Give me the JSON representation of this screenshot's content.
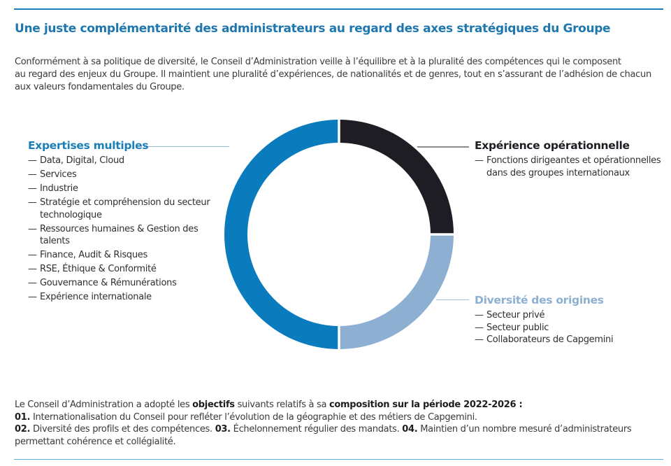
{
  "title": "Une juste complémentarité des administrateurs au regard des axes stratégiques du Groupe",
  "intro_lines": [
    "Conformément à sa politique de diversité, le Conseil d’Administration veille à l’équilibre et à la pluralité des compétences qui le composent",
    "au regard des enjeux du Groupe. Il maintient une pluralité d’expériences, de nationalités et de genres, tout en s’assurant de l’adhésion de chacun",
    "aux valeurs fondamentales du Groupe."
  ],
  "colors": {
    "accent": "#1f77b0",
    "expertises": "#0a7bbd",
    "experience": "#1e1d24",
    "diversite": "#8db0d2"
  },
  "chart_data": {
    "type": "pie",
    "style": "donut",
    "title": "",
    "segments": [
      {
        "name": "Expertises multiples",
        "value": 50,
        "color": "#0a7bbd"
      },
      {
        "name": "Expérience opérationnelle",
        "value": 25,
        "color": "#1e1d24"
      },
      {
        "name": "Diversité des origines",
        "value": 25,
        "color": "#8db0d2"
      }
    ],
    "legend": "labels beside segments"
  },
  "groups": {
    "expertises": {
      "title": "Expertises multiples",
      "items": [
        "Data, Digital, Cloud",
        "Services",
        "Industrie",
        "Stratégie et compréhension du secteur technologique",
        "Ressources humaines & Gestion des talents",
        "Finance, Audit & Risques",
        "RSE, Éthique & Conformité",
        "Gouvernance & Rémunérations",
        "Expérience internationale"
      ]
    },
    "experience": {
      "title": "Expérience opérationnelle",
      "items": [
        "Fonctions dirigeantes et opérationnelles dans des groupes internationaux"
      ]
    },
    "diversite": {
      "title": "Diversité des origines",
      "items": [
        "Secteur privé",
        "Secteur public",
        "Collaborateurs de Capgemini"
      ]
    }
  },
  "dash": "—",
  "objectives": {
    "line1": {
      "a": "Le Conseil d’Administration a adopté les ",
      "b": "objectifs",
      "c": " suivants relatifs à sa ",
      "d": "composition sur la période 2022-2026 :"
    },
    "line2": {
      "num": "01.",
      "text": " Internationalisation du Conseil pour refléter l’évolution de la géographie et des métiers de Capgemini."
    },
    "line3": {
      "num2": "02.",
      "text2": " Diversité des profils et des compétences. ",
      "num3": "03.",
      "text3": " Échelonnement régulier des mandats. ",
      "num4": "04.",
      "text4": " Maintien d’un nombre mesuré d’administrateurs"
    },
    "line4": "permettant cohérence et collégialité."
  }
}
